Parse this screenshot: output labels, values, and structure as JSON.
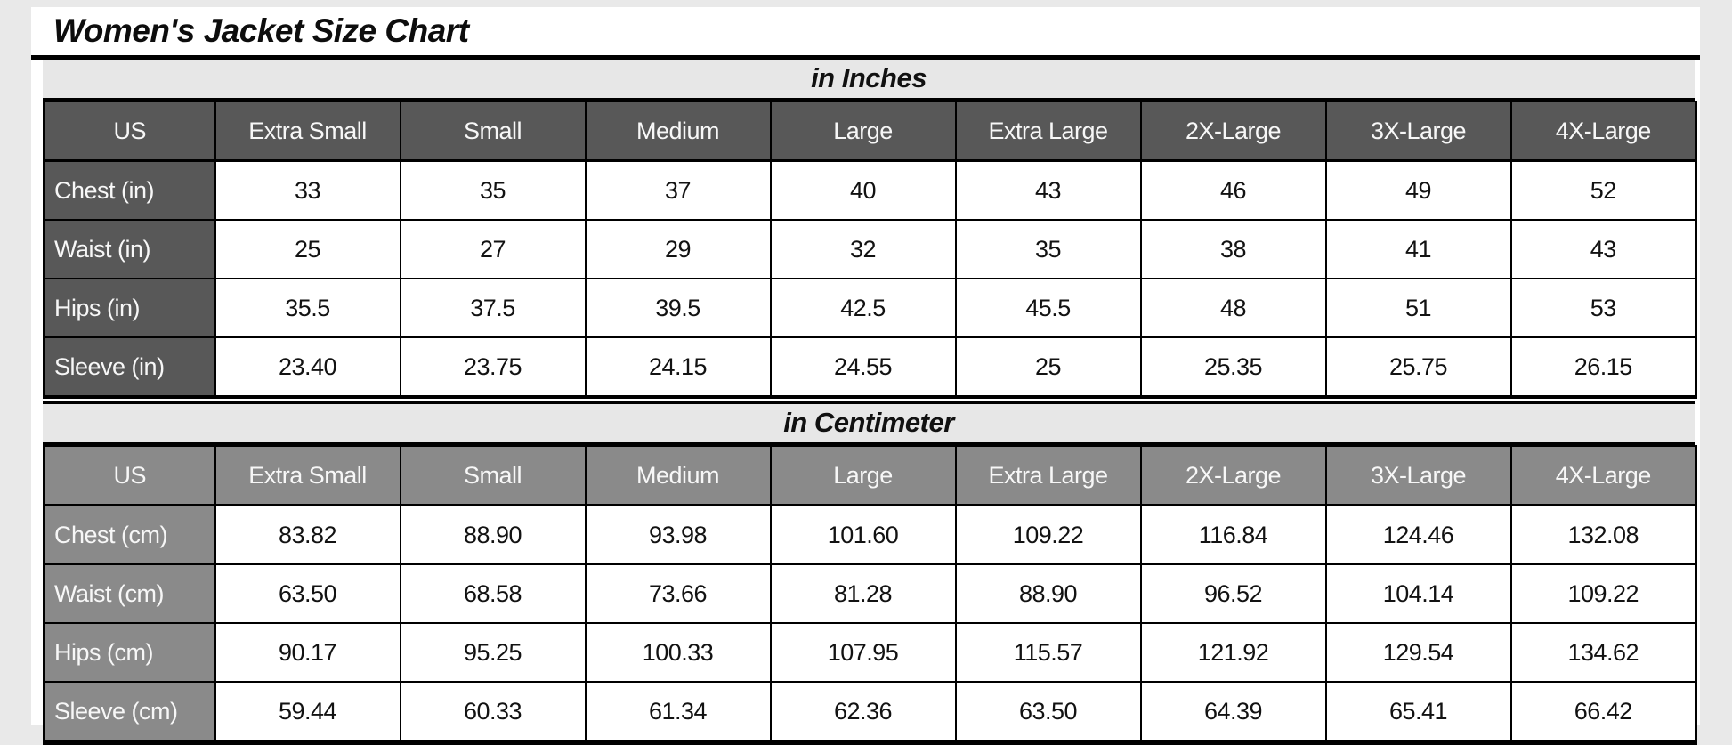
{
  "chart_data": {
    "type": "table",
    "title": "Women's Jacket Size Chart",
    "columns": [
      "US",
      "Extra Small",
      "Small",
      "Medium",
      "Large",
      "Extra Large",
      "2X-Large",
      "3X-Large",
      "4X-Large"
    ],
    "sections": [
      {
        "label": "in Inches",
        "theme": "dark",
        "rows": [
          {
            "label": "Chest (in)",
            "values": [
              "33",
              "35",
              "37",
              "40",
              "43",
              "46",
              "49",
              "52"
            ]
          },
          {
            "label": "Waist (in)",
            "values": [
              "25",
              "27",
              "29",
              "32",
              "35",
              "38",
              "41",
              "43"
            ]
          },
          {
            "label": "Hips (in)",
            "values": [
              "35.5",
              "37.5",
              "39.5",
              "42.5",
              "45.5",
              "48",
              "51",
              "53"
            ]
          },
          {
            "label": "Sleeve (in)",
            "values": [
              "23.40",
              "23.75",
              "24.15",
              "24.55",
              "25",
              "25.35",
              "25.75",
              "26.15"
            ]
          }
        ]
      },
      {
        "label": "in Centimeter",
        "theme": "medium",
        "rows": [
          {
            "label": "Chest (cm)",
            "values": [
              "83.82",
              "88.90",
              "93.98",
              "101.60",
              "109.22",
              "116.84",
              "124.46",
              "132.08"
            ]
          },
          {
            "label": "Waist (cm)",
            "values": [
              "63.50",
              "68.58",
              "73.66",
              "81.28",
              "88.90",
              "96.52",
              "104.14",
              "109.22"
            ]
          },
          {
            "label": "Hips (cm)",
            "values": [
              "90.17",
              "95.25",
              "100.33",
              "107.95",
              "115.57",
              "121.92",
              "129.54",
              "134.62"
            ]
          },
          {
            "label": "Sleeve (cm)",
            "values": [
              "59.44",
              "60.33",
              "61.34",
              "62.36",
              "63.50",
              "64.39",
              "65.41",
              "66.42"
            ]
          }
        ]
      }
    ],
    "colors": {
      "header_dark": "#585858",
      "header_medium": "#8a8a8a",
      "banner_bg": "#e7e7e7",
      "page_bg": "#e9e9e9",
      "grid_border": "#000000"
    }
  }
}
